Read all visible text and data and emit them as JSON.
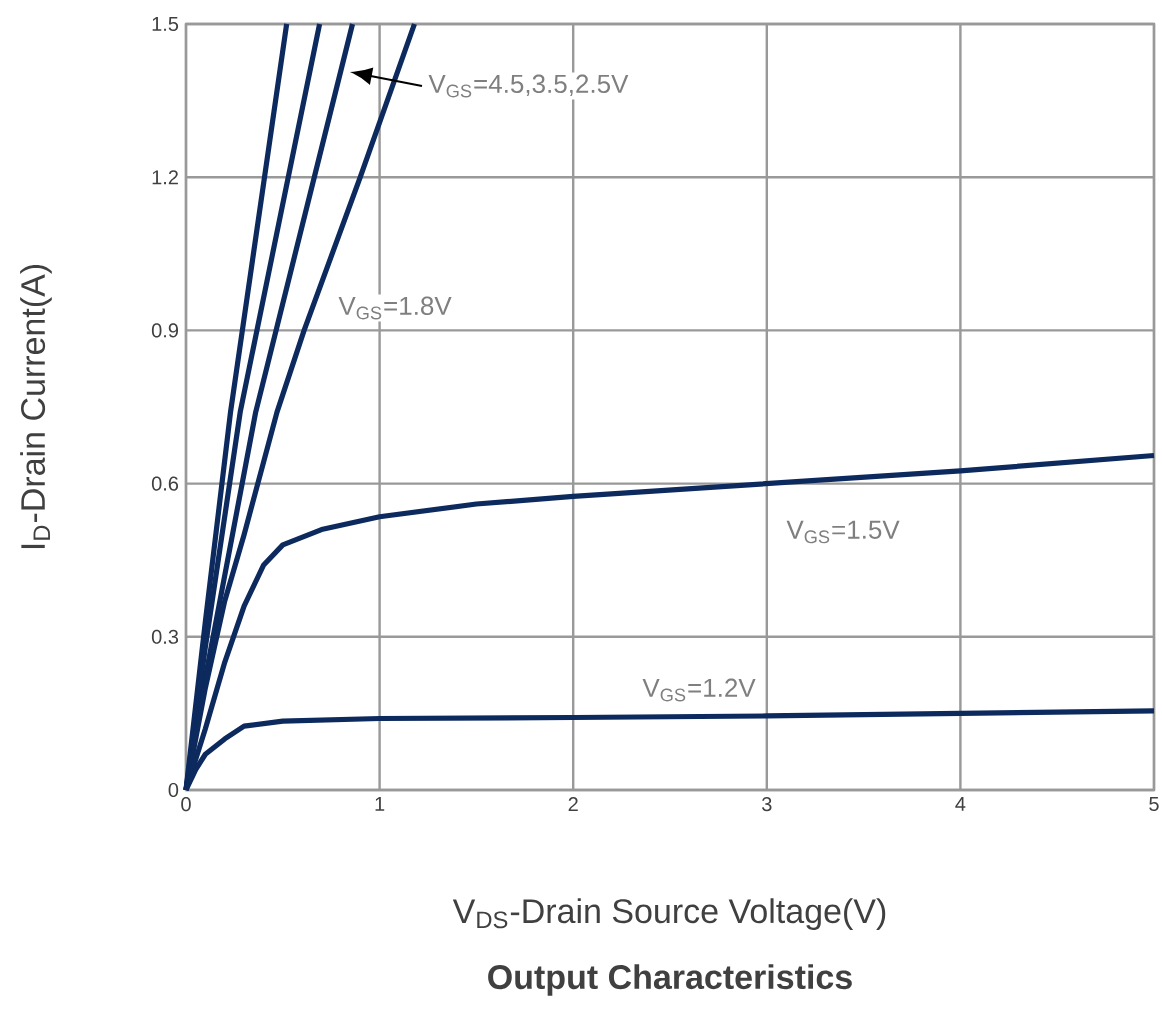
{
  "chart_data": {
    "type": "line",
    "title": "Output Characteristics",
    "xlabel": "V$_{DS}$-Drain Source Voltage(V)",
    "ylabel": "I$_{D}$-Drain Current(A)",
    "xlim": [
      0,
      5
    ],
    "ylim": [
      0,
      1.5
    ],
    "xticks": [
      0,
      1,
      2,
      3,
      4,
      5
    ],
    "yticks": [
      0,
      0.3,
      0.6,
      0.9,
      1.2,
      1.5
    ],
    "grid": true,
    "series": [
      {
        "color": "#0d2a5e",
        "x": [
          0,
          0.1,
          0.23,
          0.52
        ],
        "values": [
          0,
          0.33,
          0.74,
          1.5
        ]
      },
      {
        "color": "#0d2a5e",
        "x": [
          0,
          0.1,
          0.28,
          0.69
        ],
        "values": [
          0,
          0.28,
          0.74,
          1.5
        ]
      },
      {
        "color": "#0d2a5e",
        "x": [
          0,
          0.1,
          0.36,
          0.86
        ],
        "values": [
          0,
          0.22,
          0.74,
          1.5
        ]
      },
      {
        "color": "#0d2a5e",
        "x": [
          0,
          0.1,
          0.2,
          0.3,
          0.47,
          0.61,
          0.9,
          1.18
        ],
        "values": [
          0,
          0.2,
          0.37,
          0.5,
          0.74,
          0.9,
          1.2,
          1.5
        ]
      },
      {
        "color": "#0d2a5e",
        "x": [
          0,
          0.1,
          0.2,
          0.3,
          0.4,
          0.5,
          0.7,
          1,
          1.5,
          2,
          3,
          4,
          5
        ],
        "values": [
          0,
          0.12,
          0.25,
          0.36,
          0.44,
          0.48,
          0.51,
          0.535,
          0.56,
          0.575,
          0.6,
          0.625,
          0.655
        ]
      },
      {
        "color": "#0d2a5e",
        "x": [
          0,
          0.05,
          0.1,
          0.2,
          0.3,
          0.5,
          1,
          2,
          3,
          4,
          5
        ],
        "values": [
          0,
          0.04,
          0.07,
          0.1,
          0.125,
          0.135,
          0.14,
          0.142,
          0.145,
          0.15,
          0.155
        ]
      }
    ],
    "annotations": [
      "V$_{GS}$=4.5,3.5,2.5V",
      "V$_{GS}$=1.8V",
      "V$_{GS}$=1.5V",
      "V$_{GS}$=1.2V"
    ]
  }
}
